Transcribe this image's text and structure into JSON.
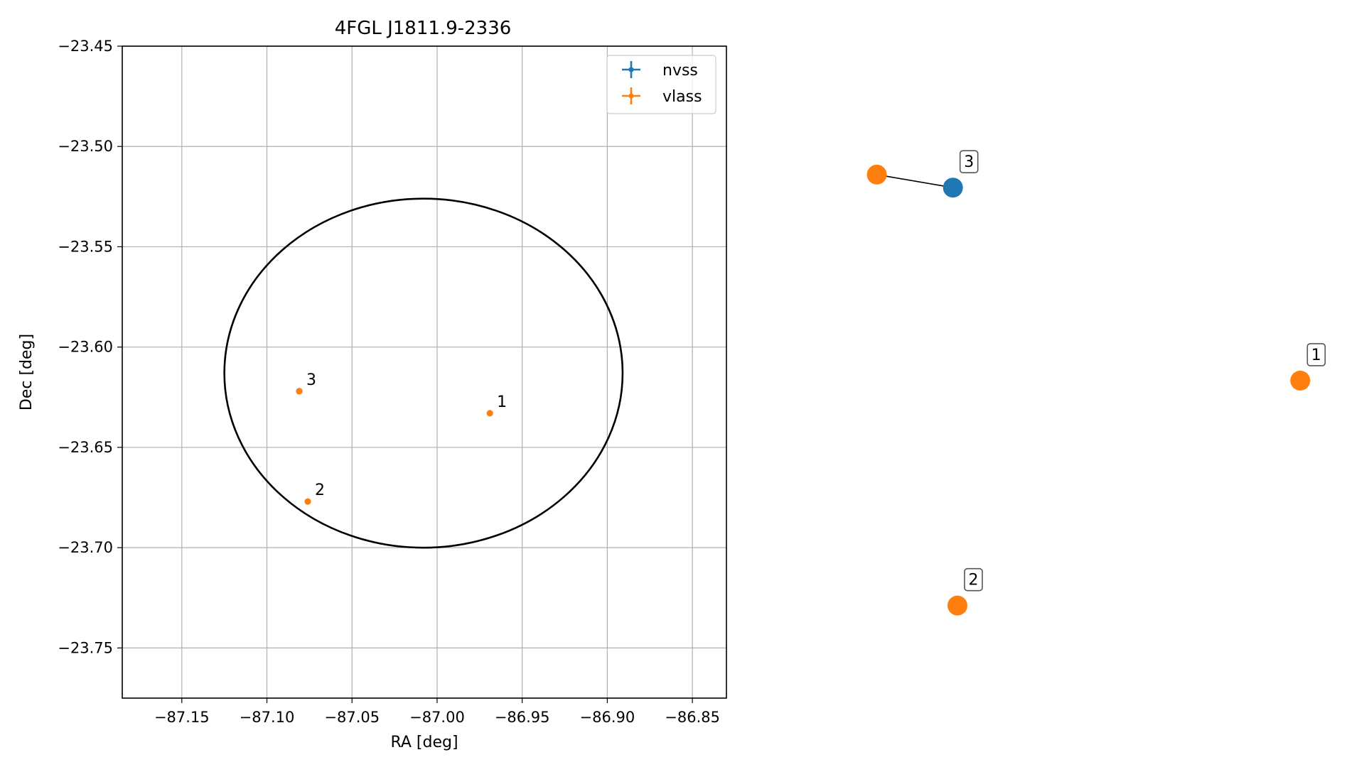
{
  "chart_data": [
    {
      "type": "scatter",
      "title": "4FGL J1811.9-2336",
      "xlabel": "RA [deg]",
      "ylabel": "Dec [deg]",
      "xlim": [
        -87.185,
        -86.83
      ],
      "ylim": [
        -23.775,
        -23.45
      ],
      "xticks": [
        -87.15,
        -87.1,
        -87.05,
        -87.0,
        -86.95,
        -86.9,
        -86.85
      ],
      "xtick_labels": [
        "−87.15",
        "−87.10",
        "−87.05",
        "−87.00",
        "−86.95",
        "−86.90",
        "−86.85"
      ],
      "yticks": [
        -23.45,
        -23.5,
        -23.55,
        -23.6,
        -23.65,
        -23.7,
        -23.75
      ],
      "ytick_labels": [
        "−23.45",
        "−23.50",
        "−23.55",
        "−23.60",
        "−23.65",
        "−23.70",
        "−23.75"
      ],
      "grid": true,
      "legend_position": "top-right",
      "colors": {
        "nvss": "#1f77b4",
        "vlass": "#ff7f0e",
        "ellipse": "#000000",
        "grid": "#b0b0b0"
      },
      "series": [
        {
          "name": "nvss",
          "points": [
            {
              "x": -87.081,
              "y": -23.622
            }
          ]
        },
        {
          "name": "vlass",
          "points": [
            {
              "x": -86.969,
              "y": -23.633,
              "label": "1"
            },
            {
              "x": -87.076,
              "y": -23.677,
              "label": "2"
            },
            {
              "x": -87.081,
              "y": -23.622,
              "label": "3"
            }
          ]
        }
      ],
      "ellipse": {
        "center": [
          -87.008,
          -23.613
        ],
        "ra_half_width": 0.117,
        "dec_half_height": 0.087
      }
    },
    {
      "type": "scatter",
      "grid": false,
      "xlim": [
        0,
        1
      ],
      "ylim": [
        0,
        1
      ],
      "colors": {
        "nvss": "#1f77b4",
        "vlass": "#ff7f0e",
        "link": "#000000"
      },
      "points": [
        {
          "series": "vlass",
          "x": 0.198,
          "y": 0.803
        },
        {
          "series": "nvss",
          "x": 0.351,
          "y": 0.783,
          "label": "3"
        },
        {
          "series": "vlass",
          "x": 1.049,
          "y": 0.487,
          "label": "1"
        },
        {
          "series": "vlass",
          "x": 0.36,
          "y": 0.142,
          "label": "2"
        }
      ],
      "links": [
        [
          0,
          1
        ]
      ]
    }
  ]
}
